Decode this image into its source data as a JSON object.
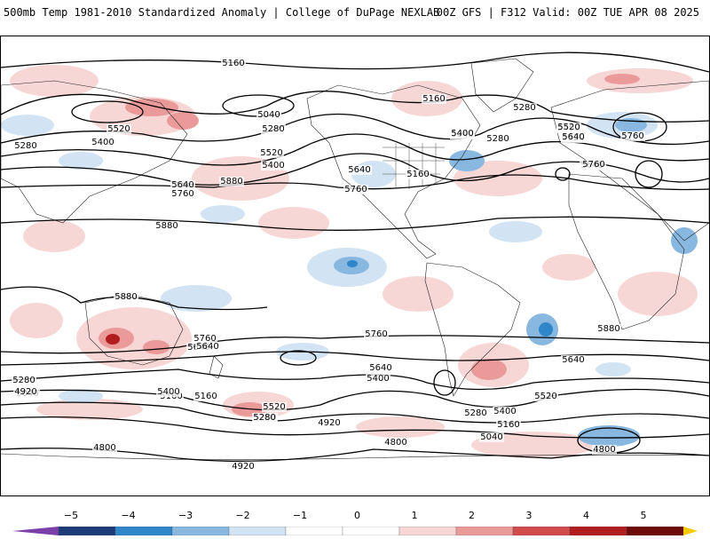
{
  "header": {
    "title": "500mb Temp 1981-2010 Standardized Anomaly | College of DuPage NEXLAB",
    "run_info": "00Z GFS | F312 Valid: 00Z TUE APR 08 2025"
  },
  "map": {
    "field": "500mb temperature standardized anomaly",
    "contour_field": "500mb geopotential height (dam-m)",
    "contour_labels": [
      "5160",
      "5040",
      "5280",
      "5400",
      "5520",
      "5640",
      "5760",
      "5880",
      "5160",
      "5040",
      "5280",
      "5400",
      "5520",
      "5640",
      "5760",
      "5160",
      "5280",
      "5400",
      "5520",
      "5640",
      "5760",
      "5280",
      "5400",
      "5520",
      "5640",
      "5760",
      "5880",
      "5880",
      "5760",
      "5640",
      "5760",
      "5640",
      "5400",
      "5520",
      "5640",
      "5400",
      "5280",
      "5160",
      "5040",
      "4920",
      "4800",
      "4800",
      "4920",
      "5040",
      "5160",
      "5280",
      "5400",
      "5520",
      "4920",
      "5280",
      "4800",
      "5640",
      "5760",
      "5880",
      "5160",
      "5280"
    ],
    "colors": {
      "neg5": "#7a3fa8",
      "neg4": "#1e3a78",
      "neg3": "#2f86c9",
      "neg2": "#88b8e0",
      "neg1": "#d2e4f4",
      "zero": "#ffffff",
      "pos1": "#f7d6d6",
      "pos2": "#eb9a9a",
      "pos3": "#d24b4b",
      "pos4": "#b21d1d",
      "pos5": "#6e0a0a",
      "pos_max": "#f5c800"
    }
  },
  "colorbar": {
    "ticks": [
      "−5",
      "−4",
      "−3",
      "−2",
      "−1",
      "0",
      "1",
      "2",
      "3",
      "4",
      "5"
    ]
  }
}
